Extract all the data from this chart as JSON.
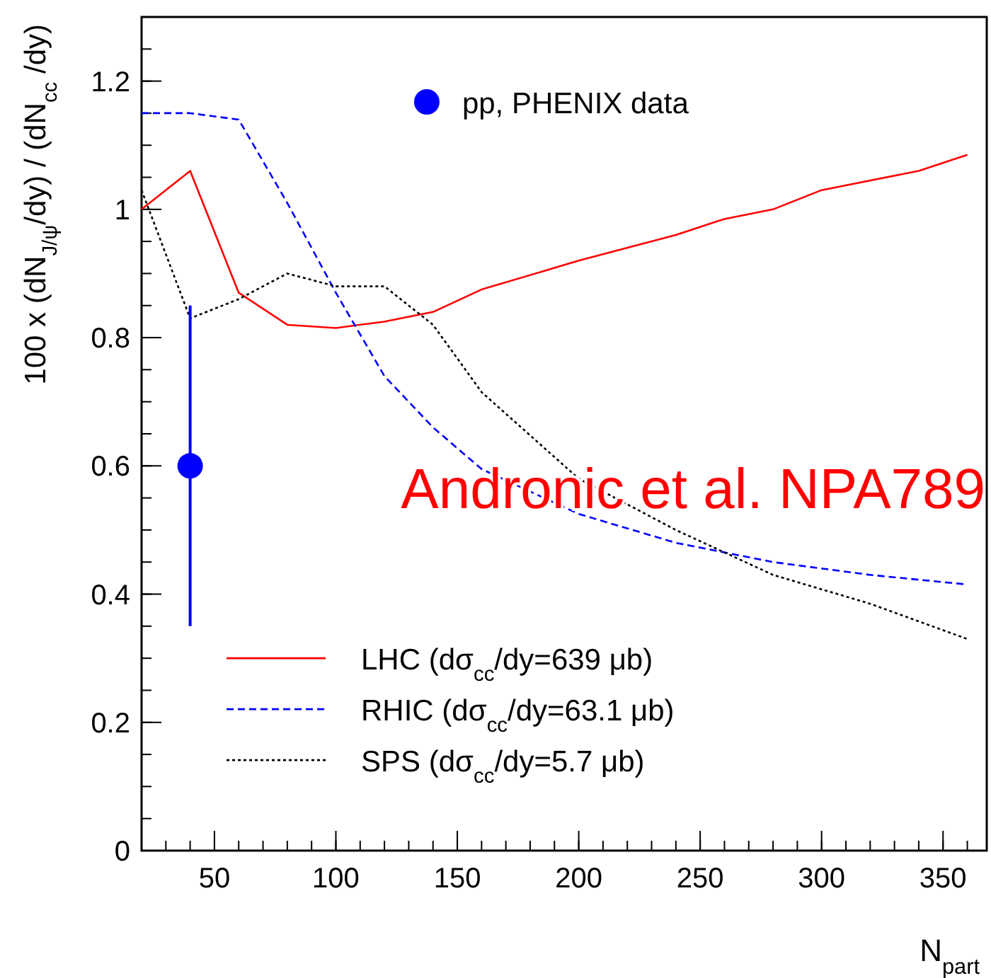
{
  "chart_data": {
    "type": "line",
    "xlabel": "N$_{part}$",
    "ylabel": "100 x (dN$_{J/ψ}$/dy) / (dN$_{cc}$ /dy)",
    "xlim": [
      20,
      368
    ],
    "xticks": [
      50,
      100,
      150,
      200,
      250,
      300,
      350
    ],
    "ylim": [
      0,
      1.3
    ],
    "yticks": [
      0,
      0.2,
      0.4,
      0.6,
      0.8,
      1,
      1.2
    ],
    "legend": "left",
    "annotations": [
      "Andronic et al. NPA789"
    ],
    "series": [
      {
        "name": "pp, PHENIX data",
        "type": "scatter",
        "marker": "circle",
        "color": "#0000ff",
        "x": [
          40
        ],
        "values": [
          0.6
        ],
        "errors": [
          0.25
        ]
      },
      {
        "name": "LHC (dσ$_{cc}$/dy=639 μb)",
        "line_style": "solid",
        "color": "#ff0000",
        "x": [
          20,
          40,
          60,
          80,
          100,
          120,
          140,
          160,
          200,
          240,
          260,
          280,
          300,
          340,
          360
        ],
        "values": [
          1.0,
          1.06,
          0.87,
          0.82,
          0.815,
          0.825,
          0.84,
          0.875,
          0.92,
          0.96,
          0.985,
          1.0,
          1.03,
          1.06,
          1.085
        ]
      },
      {
        "name": "RHIC (dσ$_{cc}$/dy=63.1 μb)",
        "line_style": "dashed",
        "color": "#0000ff",
        "x": [
          20,
          40,
          60,
          80,
          100,
          120,
          140,
          160,
          200,
          240,
          280,
          320,
          360
        ],
        "values": [
          1.15,
          1.15,
          1.14,
          1.01,
          0.87,
          0.74,
          0.66,
          0.595,
          0.525,
          0.48,
          0.45,
          0.43,
          0.415
        ]
      },
      {
        "name": "SPS (dσ$_{cc}$/dy=5.7 μb)",
        "line_style": "dotted",
        "color": "#000000",
        "x": [
          20,
          40,
          60,
          80,
          100,
          120,
          140,
          160,
          200,
          240,
          280,
          320,
          360
        ],
        "values": [
          1.03,
          0.83,
          0.86,
          0.9,
          0.88,
          0.88,
          0.82,
          0.715,
          0.58,
          0.5,
          0.43,
          0.385,
          0.33
        ]
      }
    ]
  }
}
